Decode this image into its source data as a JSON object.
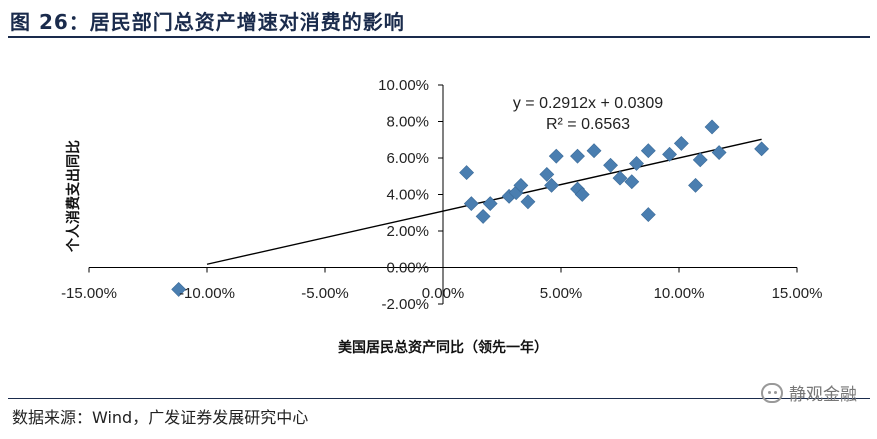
{
  "header": {
    "title": "图 26：居民部门总资产增速对消费的影响"
  },
  "footer": {
    "source": "数据来源：Wind，广发证券发展研究中心",
    "watermark": "静观金融",
    "watermark_icon": "wechat-icon"
  },
  "chart_data": {
    "type": "scatter",
    "xlabel": "美国居民总资产同比（领先一年）",
    "ylabel": "个人消费支出同比",
    "xlim": [
      -0.15,
      0.15
    ],
    "ylim": [
      -0.02,
      0.1
    ],
    "x_ticks": [
      -0.15,
      -0.1,
      -0.05,
      0.0,
      0.05,
      0.1,
      0.15
    ],
    "x_tick_labels": [
      "-15.00%",
      "-10.00%",
      "-5.00%",
      "0.00%",
      "5.00%",
      "10.00%",
      "15.00%"
    ],
    "y_ticks": [
      -0.02,
      0.0,
      0.02,
      0.04,
      0.06,
      0.08,
      0.1
    ],
    "y_tick_labels": [
      "-2.00%",
      "0.00%",
      "2.00%",
      "4.00%",
      "6.00%",
      "8.00%",
      "10.00%"
    ],
    "grid": false,
    "marker_color": "#4a7eb0",
    "trendline": {
      "slope": 0.2912,
      "intercept": 0.0309,
      "equation": "y = 0.2912x + 0.0309",
      "r2": "R² = 0.6563",
      "x_range": [
        -0.1,
        0.135
      ]
    },
    "points": [
      {
        "x": -0.112,
        "y": -0.012
      },
      {
        "x": 0.01,
        "y": 0.052
      },
      {
        "x": 0.012,
        "y": 0.035
      },
      {
        "x": 0.017,
        "y": 0.028
      },
      {
        "x": 0.02,
        "y": 0.035
      },
      {
        "x": 0.028,
        "y": 0.039
      },
      {
        "x": 0.031,
        "y": 0.041
      },
      {
        "x": 0.033,
        "y": 0.045
      },
      {
        "x": 0.036,
        "y": 0.036
      },
      {
        "x": 0.044,
        "y": 0.051
      },
      {
        "x": 0.046,
        "y": 0.045
      },
      {
        "x": 0.048,
        "y": 0.061
      },
      {
        "x": 0.057,
        "y": 0.061
      },
      {
        "x": 0.057,
        "y": 0.043
      },
      {
        "x": 0.059,
        "y": 0.04
      },
      {
        "x": 0.064,
        "y": 0.064
      },
      {
        "x": 0.071,
        "y": 0.056
      },
      {
        "x": 0.075,
        "y": 0.049
      },
      {
        "x": 0.08,
        "y": 0.047
      },
      {
        "x": 0.082,
        "y": 0.057
      },
      {
        "x": 0.087,
        "y": 0.064
      },
      {
        "x": 0.087,
        "y": 0.029
      },
      {
        "x": 0.096,
        "y": 0.062
      },
      {
        "x": 0.101,
        "y": 0.068
      },
      {
        "x": 0.107,
        "y": 0.045
      },
      {
        "x": 0.109,
        "y": 0.059
      },
      {
        "x": 0.114,
        "y": 0.077
      },
      {
        "x": 0.117,
        "y": 0.063
      },
      {
        "x": 0.135,
        "y": 0.065
      }
    ]
  }
}
